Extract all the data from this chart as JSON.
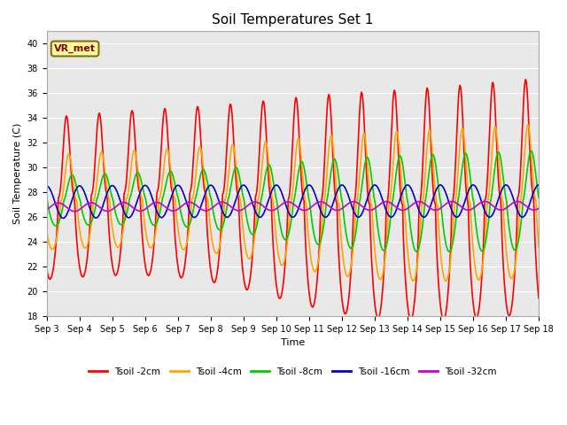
{
  "title": "Soil Temperatures Set 1",
  "xlabel": "Time",
  "ylabel": "Soil Temperature (C)",
  "ylim": [
    18,
    41
  ],
  "yticks": [
    18,
    20,
    22,
    24,
    26,
    28,
    30,
    32,
    34,
    36,
    38,
    40
  ],
  "annotation_text": "VR_met",
  "annotation_color": "#8B0000",
  "annotation_bg": "#FFFF99",
  "annotation_border": "#8B6914",
  "series": {
    "Tsoil -2cm": {
      "color": "#FF0000",
      "linewidth": 1.2
    },
    "Tsoil -4cm": {
      "color": "#FFA500",
      "linewidth": 1.2
    },
    "Tsoil -8cm": {
      "color": "#00CC00",
      "linewidth": 1.2
    },
    "Tsoil -16cm": {
      "color": "#0000CC",
      "linewidth": 1.2
    },
    "Tsoil -32cm": {
      "color": "#CC00CC",
      "linewidth": 1.2
    }
  },
  "bg_color": "#E8E8E8",
  "fig_color": "#FFFFFF",
  "grid_color": "#FFFFFF",
  "n_points": 720
}
